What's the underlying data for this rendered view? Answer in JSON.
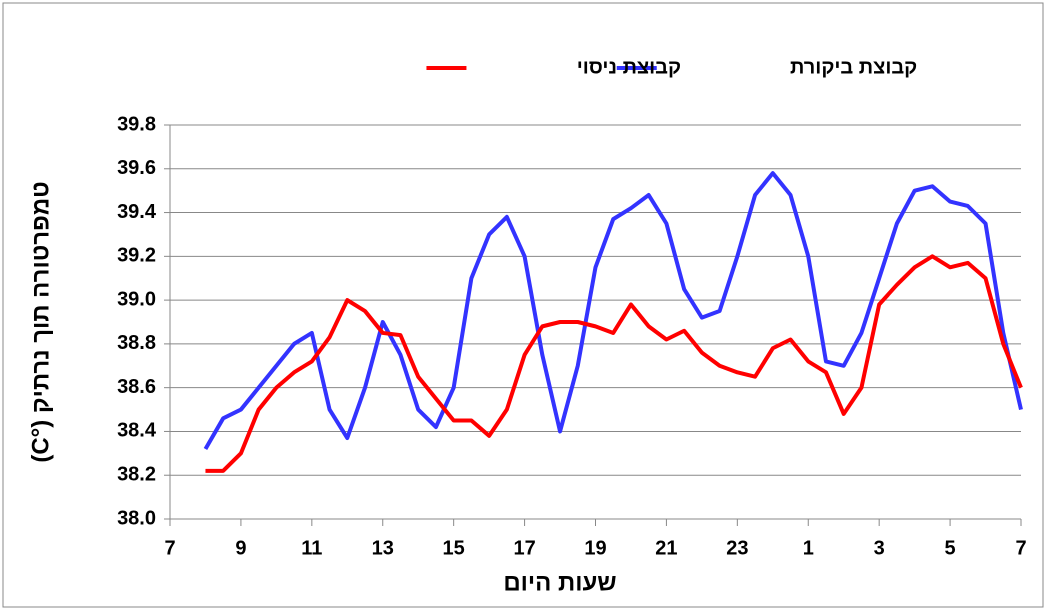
{
  "chart_data": {
    "type": "line",
    "xlabel": "שעות היום",
    "ylabel": "טמפרטורה תוך נרתיק (°C)",
    "x": [
      8,
      8.5,
      9,
      9.5,
      10,
      10.5,
      11,
      11.5,
      12,
      12.5,
      13,
      13.5,
      14,
      14.5,
      15,
      15.5,
      16,
      16.5,
      17,
      17.5,
      18,
      18.5,
      19,
      19.5,
      20,
      20.5,
      21,
      21.5,
      22,
      22.5,
      23,
      23.5,
      24,
      24.5,
      25,
      25.5,
      26,
      26.5,
      27,
      27.5,
      28,
      28.5,
      29,
      29.5,
      30,
      30.5,
      31
    ],
    "series": [
      {
        "name": "קבוצת ביקורת",
        "color": "#3333ff",
        "values": [
          38.32,
          38.46,
          38.5,
          38.6,
          38.7,
          38.8,
          38.85,
          38.5,
          38.37,
          38.6,
          38.9,
          38.75,
          38.5,
          38.42,
          38.6,
          39.1,
          39.3,
          39.38,
          39.2,
          38.75,
          38.4,
          38.7,
          39.15,
          39.37,
          39.42,
          39.48,
          39.35,
          39.05,
          38.92,
          38.95,
          39.2,
          39.48,
          39.58,
          39.48,
          39.2,
          38.72,
          38.7,
          38.85,
          39.1,
          39.35,
          39.5,
          39.52,
          39.45,
          39.43,
          39.35,
          38.85,
          38.5
        ]
      },
      {
        "name": "קבוצת ניסוי",
        "color": "#ff0000",
        "values": [
          38.22,
          38.22,
          38.3,
          38.5,
          38.6,
          38.67,
          38.72,
          38.83,
          39.0,
          38.95,
          38.85,
          38.84,
          38.65,
          38.55,
          38.45,
          38.45,
          38.38,
          38.5,
          38.75,
          38.88,
          38.9,
          38.9,
          38.88,
          38.85,
          38.98,
          38.88,
          38.82,
          38.86,
          38.76,
          38.7,
          38.67,
          38.65,
          38.78,
          38.82,
          38.72,
          38.67,
          38.48,
          38.6,
          38.98,
          39.07,
          39.15,
          39.2,
          39.15,
          39.17,
          39.1,
          38.8,
          38.6
        ]
      }
    ],
    "xlim": [
      7,
      31
    ],
    "xticks": [
      7,
      9,
      11,
      13,
      15,
      17,
      19,
      21,
      23,
      {
        "value": 25,
        "label": "1"
      },
      {
        "value": 27,
        "label": "3"
      },
      {
        "value": 29,
        "label": "5"
      },
      {
        "value": 31,
        "label": "7"
      }
    ],
    "ylim": [
      38,
      39.8
    ],
    "yticks": [
      {
        "value": 38,
        "label": "38.0"
      },
      38.2,
      38.4,
      38.6,
      38.8,
      {
        "value": 39,
        "label": "39.0"
      },
      39.2,
      39.4,
      39.6,
      39.8
    ],
    "grid": true,
    "legend": "top"
  }
}
